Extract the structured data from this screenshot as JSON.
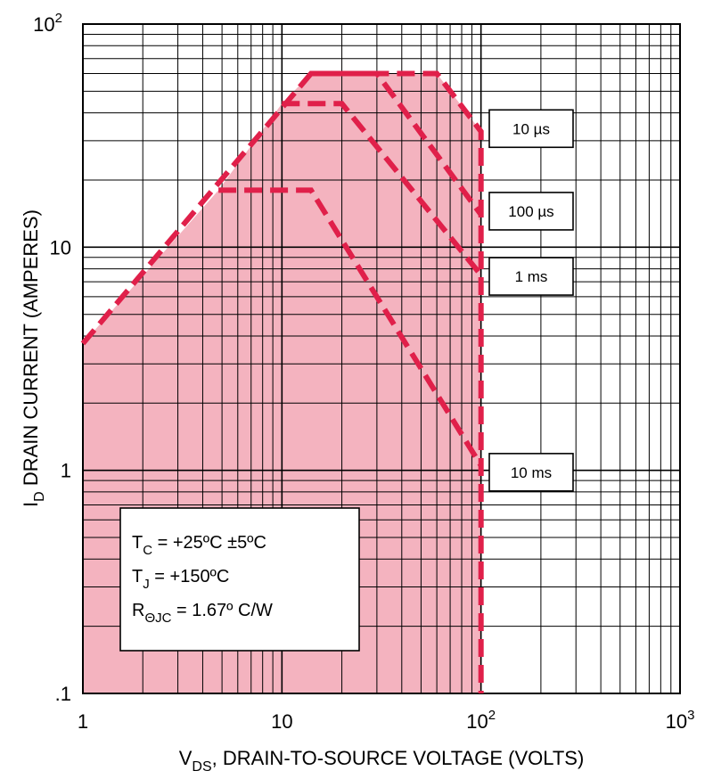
{
  "chart_data": {
    "type": "line",
    "xlabel": {
      "main": "V",
      "sub": "DS",
      "rest": ", DRAIN-TO-SOURCE VOLTAGE (VOLTS)"
    },
    "ylabel": {
      "main": "I",
      "sub": "D",
      "rest": " DRAIN CURRENT (AMPERES)"
    },
    "xscale": "log",
    "yscale": "log",
    "xlim": [
      1,
      1000
    ],
    "ylim": [
      0.1,
      100
    ],
    "grid": true,
    "x_ticks": [
      {
        "value": 1,
        "base": "1",
        "exp": ""
      },
      {
        "value": 10,
        "base": "10",
        "exp": ""
      },
      {
        "value": 100,
        "base": "10",
        "exp": "2"
      },
      {
        "value": 1000,
        "base": "10",
        "exp": "3"
      }
    ],
    "y_ticks": [
      {
        "value": 0.1,
        "base": ".1",
        "exp": ""
      },
      {
        "value": 1,
        "base": "1",
        "exp": ""
      },
      {
        "value": 10,
        "base": "10",
        "exp": ""
      },
      {
        "value": 100,
        "base": "10",
        "exp": "2"
      }
    ],
    "series": [
      {
        "name": "10 µs",
        "x": [
          1,
          14,
          60,
          100,
          100
        ],
        "y": [
          3.7,
          60,
          60,
          33,
          0.1
        ]
      },
      {
        "name": "100 µs",
        "x": [
          14,
          30,
          100
        ],
        "y": [
          60,
          60,
          14
        ]
      },
      {
        "name": "1 ms",
        "x": [
          10,
          20,
          100
        ],
        "y": [
          44,
          44,
          7.5
        ]
      },
      {
        "name": "10 ms",
        "x": [
          4.8,
          14,
          100
        ],
        "y": [
          18,
          18,
          1.05
        ]
      }
    ],
    "fill_region": {
      "x": [
        1,
        1,
        4.8,
        10,
        14,
        60,
        100,
        100
      ],
      "y": [
        0.1,
        3.7,
        18,
        44,
        60,
        60,
        33,
        0.1
      ]
    },
    "pulse_labels": [
      {
        "series": "10 µs",
        "label": "10 µs",
        "at_y": 34
      },
      {
        "series": "100 µs",
        "label": "100 µs",
        "at_y": 14.5
      },
      {
        "series": "1 ms",
        "label": "1 ms",
        "at_y": 7.4
      },
      {
        "series": "10 ms",
        "label": "10 ms",
        "at_y": 0.98
      }
    ],
    "conditions": [
      {
        "main": "T",
        "sub": "C",
        "rest": " = +25ºC ±5ºC"
      },
      {
        "main": "T",
        "sub": "J",
        "rest": " = +150ºC"
      },
      {
        "main": "R",
        "sub": "ΘJC",
        "rest": " = 1.67º C/W"
      }
    ],
    "colors": {
      "line": "#e0204a",
      "fill": "#f4b3bf",
      "grid": "#000000"
    }
  }
}
